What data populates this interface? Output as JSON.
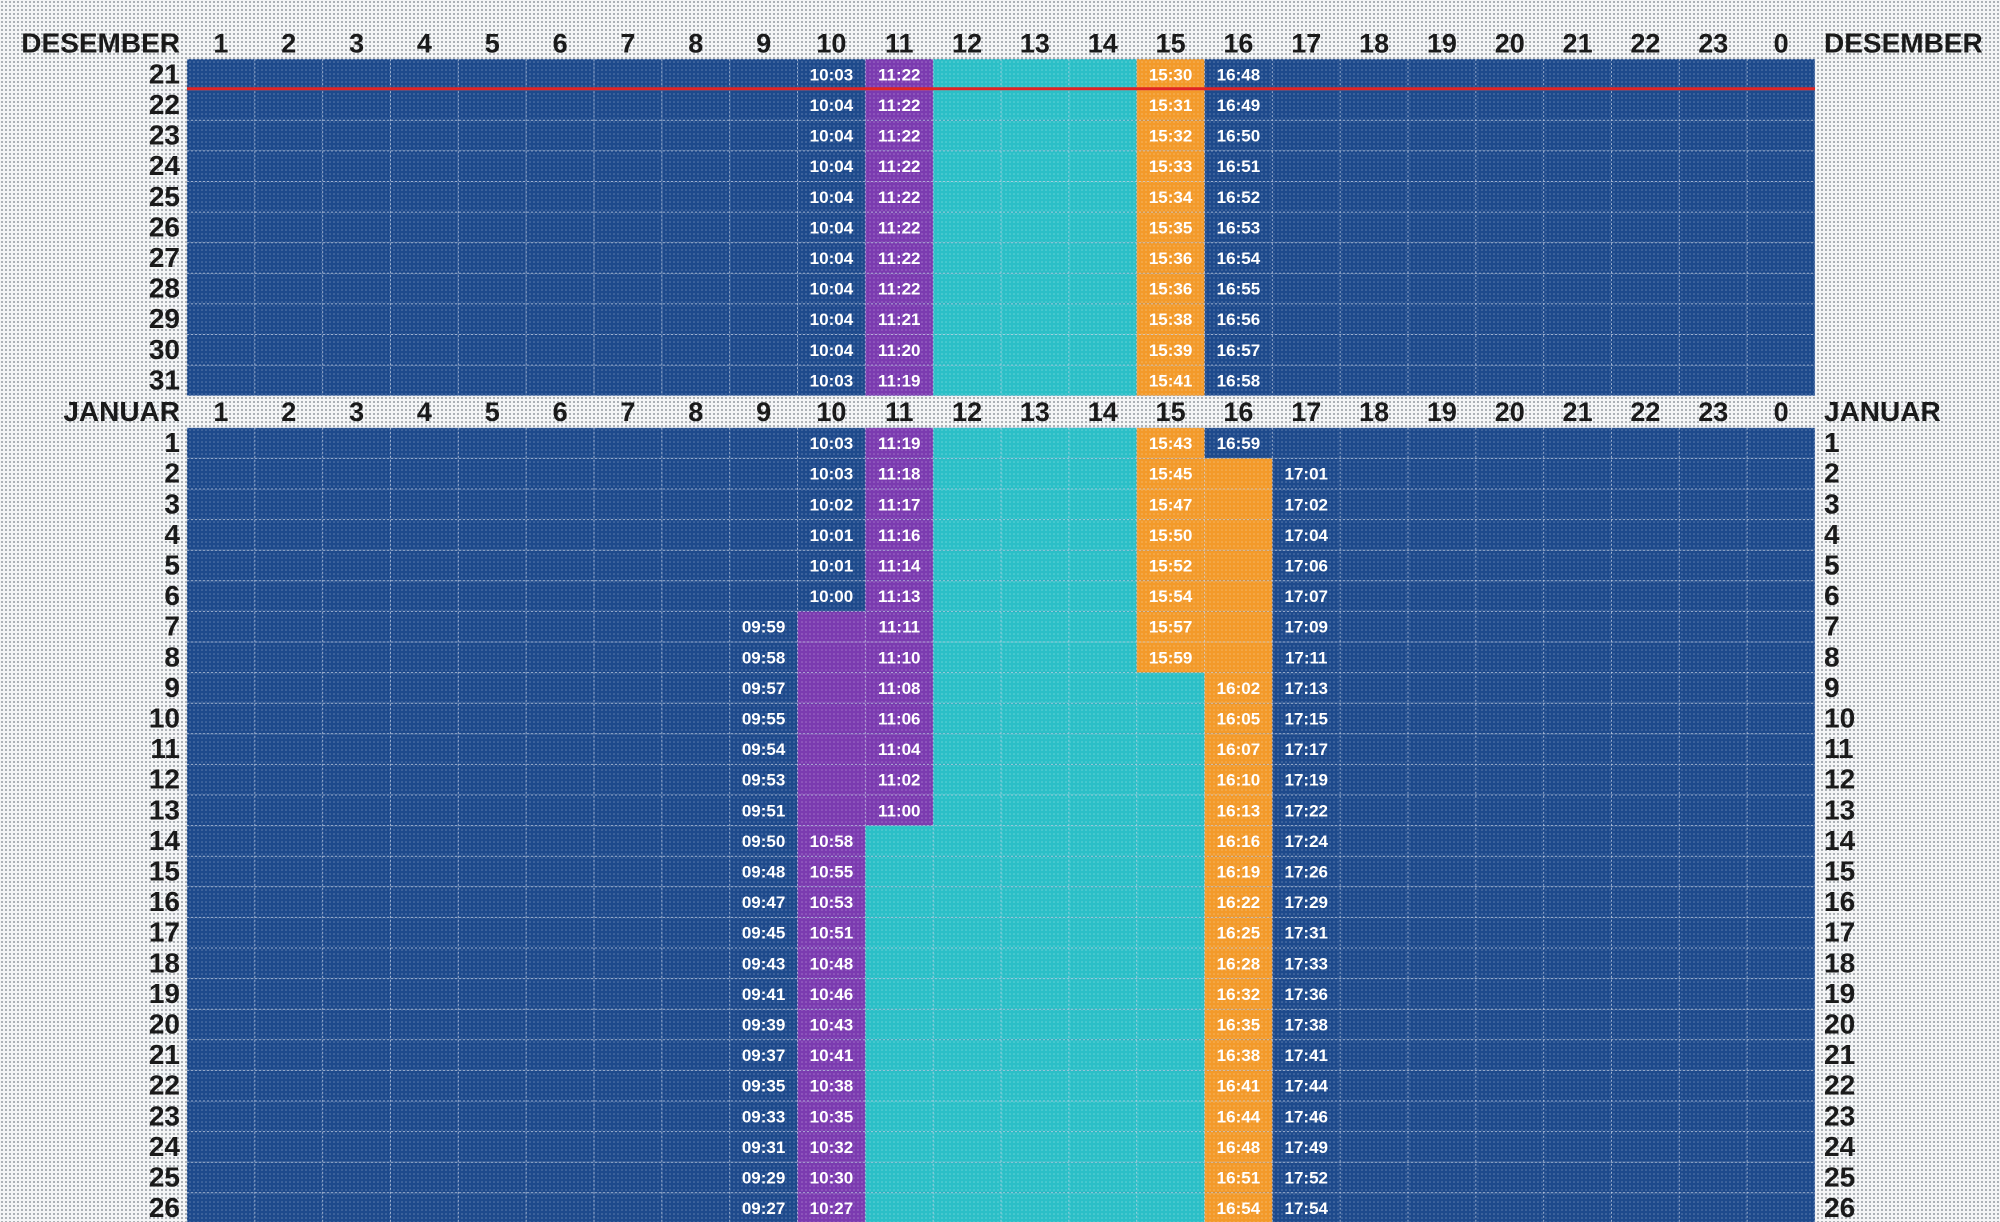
{
  "chart_data": {
    "type": "heatmap",
    "title": "",
    "hours": [
      "1",
      "2",
      "3",
      "4",
      "5",
      "6",
      "7",
      "8",
      "9",
      "10",
      "11",
      "12",
      "13",
      "14",
      "15",
      "16",
      "17",
      "18",
      "19",
      "20",
      "21",
      "22",
      "23",
      "0"
    ],
    "colors": {
      "night": "#1e4a8c",
      "twilight": "#7b3bb0",
      "daylight": "#2bbfc7",
      "dusk": "#f39a2a",
      "marker": "#e02424",
      "header_text": "#1a1a1a"
    },
    "marker_day": {
      "section": 0,
      "day": "21"
    },
    "sections": [
      {
        "name": "DESEMBER",
        "rows": [
          {
            "day": "21",
            "t1": "10:03",
            "t2": "11:22",
            "t3": "15:30",
            "t4": "16:48"
          },
          {
            "day": "22",
            "t1": "10:04",
            "t2": "11:22",
            "t3": "15:31",
            "t4": "16:49"
          },
          {
            "day": "23",
            "t1": "10:04",
            "t2": "11:22",
            "t3": "15:32",
            "t4": "16:50"
          },
          {
            "day": "24",
            "t1": "10:04",
            "t2": "11:22",
            "t3": "15:33",
            "t4": "16:51"
          },
          {
            "day": "25",
            "t1": "10:04",
            "t2": "11:22",
            "t3": "15:34",
            "t4": "16:52"
          },
          {
            "day": "26",
            "t1": "10:04",
            "t2": "11:22",
            "t3": "15:35",
            "t4": "16:53"
          },
          {
            "day": "27",
            "t1": "10:04",
            "t2": "11:22",
            "t3": "15:36",
            "t4": "16:54"
          },
          {
            "day": "28",
            "t1": "10:04",
            "t2": "11:22",
            "t3": "15:36",
            "t4": "16:55"
          },
          {
            "day": "29",
            "t1": "10:04",
            "t2": "11:21",
            "t3": "15:38",
            "t4": "16:56"
          },
          {
            "day": "30",
            "t1": "10:04",
            "t2": "11:20",
            "t3": "15:39",
            "t4": "16:57"
          },
          {
            "day": "31",
            "t1": "10:03",
            "t2": "11:19",
            "t3": "15:41",
            "t4": "16:58"
          }
        ]
      },
      {
        "name": "JANUAR",
        "rows": [
          {
            "day": "1",
            "t1": "10:03",
            "t2": "11:19",
            "t3": "15:43",
            "t4": "16:59"
          },
          {
            "day": "2",
            "t1": "10:03",
            "t2": "11:18",
            "t3": "15:45",
            "t4": "17:01"
          },
          {
            "day": "3",
            "t1": "10:02",
            "t2": "11:17",
            "t3": "15:47",
            "t4": "17:02"
          },
          {
            "day": "4",
            "t1": "10:01",
            "t2": "11:16",
            "t3": "15:50",
            "t4": "17:04"
          },
          {
            "day": "5",
            "t1": "10:01",
            "t2": "11:14",
            "t3": "15:52",
            "t4": "17:06"
          },
          {
            "day": "6",
            "t1": "10:00",
            "t2": "11:13",
            "t3": "15:54",
            "t4": "17:07"
          },
          {
            "day": "7",
            "t1": "09:59",
            "t2": "11:11",
            "t3": "15:57",
            "t4": "17:09"
          },
          {
            "day": "8",
            "t1": "09:58",
            "t2": "11:10",
            "t3": "15:59",
            "t4": "17:11"
          },
          {
            "day": "9",
            "t1": "09:57",
            "t2": "11:08",
            "t3": "16:02",
            "t4": "17:13"
          },
          {
            "day": "10",
            "t1": "09:55",
            "t2": "11:06",
            "t3": "16:05",
            "t4": "17:15"
          },
          {
            "day": "11",
            "t1": "09:54",
            "t2": "11:04",
            "t3": "16:07",
            "t4": "17:17"
          },
          {
            "day": "12",
            "t1": "09:53",
            "t2": "11:02",
            "t3": "16:10",
            "t4": "17:19"
          },
          {
            "day": "13",
            "t1": "09:51",
            "t2": "11:00",
            "t3": "16:13",
            "t4": "17:22"
          },
          {
            "day": "14",
            "t1": "09:50",
            "t2": "10:58",
            "t3": "16:16",
            "t4": "17:24"
          },
          {
            "day": "15",
            "t1": "09:48",
            "t2": "10:55",
            "t3": "16:19",
            "t4": "17:26"
          },
          {
            "day": "16",
            "t1": "09:47",
            "t2": "10:53",
            "t3": "16:22",
            "t4": "17:29"
          },
          {
            "day": "17",
            "t1": "09:45",
            "t2": "10:51",
            "t3": "16:25",
            "t4": "17:31"
          },
          {
            "day": "18",
            "t1": "09:43",
            "t2": "10:48",
            "t3": "16:28",
            "t4": "17:33"
          },
          {
            "day": "19",
            "t1": "09:41",
            "t2": "10:46",
            "t3": "16:32",
            "t4": "17:36"
          },
          {
            "day": "20",
            "t1": "09:39",
            "t2": "10:43",
            "t3": "16:35",
            "t4": "17:38"
          },
          {
            "day": "21",
            "t1": "09:37",
            "t2": "10:41",
            "t3": "16:38",
            "t4": "17:41"
          },
          {
            "day": "22",
            "t1": "09:35",
            "t2": "10:38",
            "t3": "16:41",
            "t4": "17:44"
          },
          {
            "day": "23",
            "t1": "09:33",
            "t2": "10:35",
            "t3": "16:44",
            "t4": "17:46"
          },
          {
            "day": "24",
            "t1": "09:31",
            "t2": "10:32",
            "t3": "16:48",
            "t4": "17:49"
          },
          {
            "day": "25",
            "t1": "09:29",
            "t2": "10:30",
            "t3": "16:51",
            "t4": "17:52"
          },
          {
            "day": "26",
            "t1": "09:27",
            "t2": "10:27",
            "t3": "16:54",
            "t4": "17:54"
          }
        ]
      }
    ]
  }
}
